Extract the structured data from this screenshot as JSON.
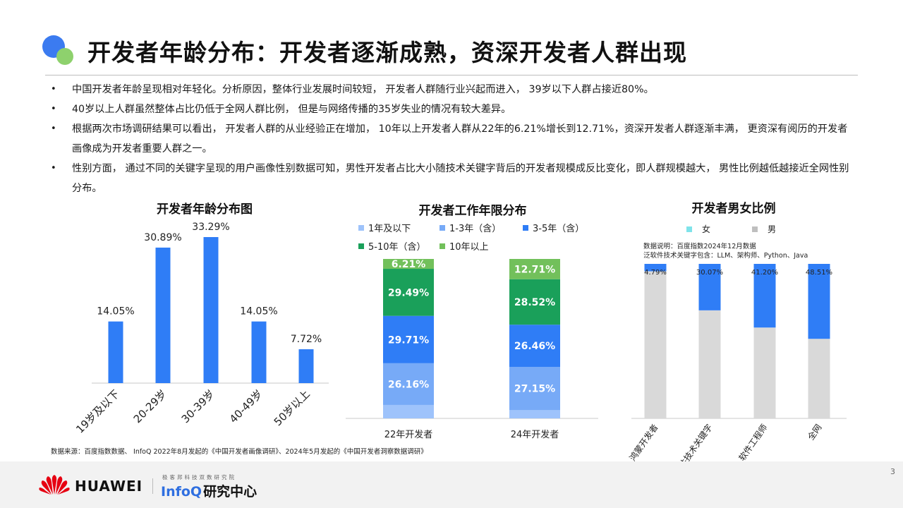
{
  "header": {
    "title": "开发者年龄分布：开发者逐渐成熟，资深开发者人群出现"
  },
  "bullets": [
    "中国开发者年龄呈现相对年轻化。分析原因，整体行业发展时间较短， 开发者人群随行业兴起而进入， 39岁以下人群占接近80%。",
    "40岁以上人群虽然整体占比仍低于全网人群比例， 但是与网络传播的35岁失业的情况有较大差异。",
    "根据两次市场调研结果可以看出， 开发者人群的从业经验正在增加， 10年以上开发者人群从22年的6.21%增长到12.71%，资深开发者人群逐渐丰满， 更资深有阅历的开发者画像成为开发者重要人群之一。",
    "性别方面， 通过不同的关键字呈现的用户画像性别数据可知，男性开发者占比大小随技术关键字背后的开发者规模成反比变化，即人群规模越大， 男性比例越低越接近全网性别分布。"
  ],
  "chart_data": [
    {
      "type": "bar",
      "title": "开发者年龄分布图",
      "categories": [
        "19岁及以下",
        "20-29岁",
        "30-39岁",
        "40-49岁",
        "50岁以上"
      ],
      "values": [
        14.05,
        30.89,
        33.29,
        14.05,
        7.72
      ],
      "value_labels": [
        "14.05%",
        "30.89%",
        "33.29%",
        "14.05%",
        "7.72%"
      ],
      "ylim": [
        0,
        36
      ],
      "grid": false,
      "color": "#2f7df6"
    },
    {
      "type": "bar",
      "stacked": true,
      "title": "开发者工作年限分布",
      "categories": [
        "22年开发者",
        "24年开发者"
      ],
      "series": [
        {
          "name": "1年及以下",
          "values": [
            8.43,
            5.16
          ],
          "color": "#9ec3fb",
          "labels": [
            "",
            ""
          ]
        },
        {
          "name": "1-3年（含）",
          "values": [
            26.16,
            27.15
          ],
          "color": "#77aaf7",
          "labels": [
            "26.16%",
            "27.15%"
          ]
        },
        {
          "name": "3-5年（含）",
          "values": [
            29.71,
            26.46
          ],
          "color": "#2f7df6",
          "labels": [
            "29.71%",
            "26.46%"
          ]
        },
        {
          "name": "5-10年（含）",
          "values": [
            29.49,
            28.52
          ],
          "color": "#1aa05a",
          "labels": [
            "29.49%",
            "28.52%"
          ]
        },
        {
          "name": "10年以上",
          "values": [
            6.21,
            12.71
          ],
          "color": "#72c05b",
          "labels": [
            "6.21%",
            "12.71%"
          ]
        }
      ],
      "ylim": [
        0,
        100
      ],
      "legend": "top"
    },
    {
      "type": "bar",
      "stacked": true,
      "title": "开发者男女比例",
      "categories": [
        "鸿蒙开发者",
        "泛软件技术关键字",
        "软件工程师",
        "全网"
      ],
      "series": [
        {
          "name": "女",
          "values": [
            4.79,
            30.07,
            41.2,
            48.51
          ],
          "color": "#2f7df6",
          "labels": [
            "4.79%",
            "30.07%",
            "41.20%",
            "48.51%"
          ]
        },
        {
          "name": "男",
          "values": [
            95.21,
            69.93,
            58.8,
            51.49
          ],
          "color": "#d9d9d9",
          "labels": [
            "",
            "",
            "",
            ""
          ]
        }
      ],
      "legend_colors": {
        "女": "#7fe3ea",
        "男": "#bfbfbf"
      },
      "notes": [
        "数据说明：百度指数2024年12月数据",
        "泛软件技术关键字包含：LLM、架构师、Python、Java"
      ],
      "ylim": [
        0,
        100
      ],
      "legend": "top"
    }
  ],
  "source_note": "数据来源：百度指数数据、 InfoQ 2022年8月发起的《中国开发者画像调研》、2024年5月发起的《中国开发者洞察数据调研》",
  "footer": {
    "brand": "HUAWEI",
    "infoq_tagline": "极客邦科技双数研究院",
    "infoq_name": "InfoQ",
    "infoq_sub": "研究中心",
    "page_number": "3"
  }
}
